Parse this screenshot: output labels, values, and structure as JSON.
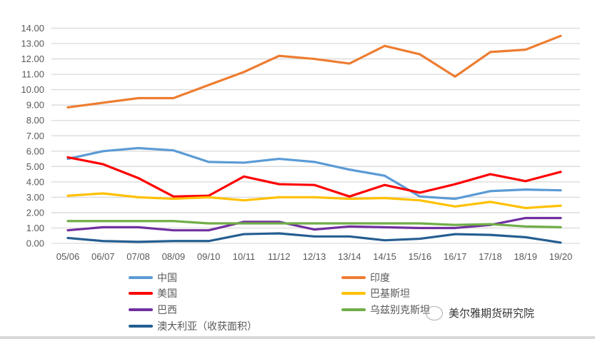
{
  "chart_data": {
    "type": "line",
    "title": "",
    "xlabel": "",
    "ylabel": "",
    "ylim": [
      0,
      14
    ],
    "yticks": [
      "0.00",
      "1.00",
      "2.00",
      "3.00",
      "4.00",
      "5.00",
      "6.00",
      "7.00",
      "8.00",
      "9.00",
      "10.00",
      "11.00",
      "12.00",
      "13.00",
      "14.00"
    ],
    "categories": [
      "05/06",
      "06/07",
      "07/08",
      "08/09",
      "09/10",
      "10/11",
      "11/12",
      "12/13",
      "13/14",
      "14/15",
      "15/16",
      "16/17",
      "17/18",
      "18/19",
      "19/20"
    ],
    "grid": true,
    "legend_position": "bottom",
    "series": [
      {
        "name": "中国",
        "color": "#5b9bd5",
        "values": [
          5.5,
          6.0,
          6.2,
          6.05,
          5.3,
          5.25,
          5.5,
          5.3,
          4.8,
          4.4,
          3.05,
          2.9,
          3.4,
          3.5,
          3.45
        ]
      },
      {
        "name": "印度",
        "color": "#ed7d31",
        "values": [
          8.85,
          9.15,
          9.45,
          9.45,
          10.3,
          11.15,
          12.2,
          12.0,
          11.7,
          12.85,
          12.3,
          10.85,
          12.45,
          12.6,
          13.5
        ]
      },
      {
        "name": "美国",
        "color": "#ff0000",
        "values": [
          5.6,
          5.15,
          4.25,
          3.05,
          3.1,
          4.35,
          3.85,
          3.8,
          3.05,
          3.8,
          3.3,
          3.85,
          4.5,
          4.05,
          4.65
        ]
      },
      {
        "name": "巴基斯坦",
        "color": "#ffc000",
        "values": [
          3.1,
          3.25,
          3.0,
          2.9,
          3.0,
          2.8,
          3.0,
          3.0,
          2.9,
          2.95,
          2.8,
          2.4,
          2.7,
          2.3,
          2.45
        ]
      },
      {
        "name": "巴西",
        "color": "#7030a0",
        "values": [
          0.85,
          1.05,
          1.05,
          0.85,
          0.85,
          1.4,
          1.4,
          0.9,
          1.1,
          1.05,
          1.0,
          1.0,
          1.2,
          1.65,
          1.65
        ]
      },
      {
        "name": "乌兹别克斯坦",
        "color": "#70ad47",
        "values": [
          1.45,
          1.45,
          1.45,
          1.45,
          1.3,
          1.3,
          1.3,
          1.3,
          1.3,
          1.3,
          1.3,
          1.2,
          1.25,
          1.1,
          1.05
        ]
      },
      {
        "name": "澳大利亚（收获面积）",
        "color": "#255e91",
        "values": [
          0.35,
          0.15,
          0.1,
          0.15,
          0.15,
          0.6,
          0.65,
          0.45,
          0.45,
          0.2,
          0.3,
          0.6,
          0.55,
          0.4,
          0.05
        ]
      }
    ]
  },
  "watermark": "美尔雅期货研究院"
}
